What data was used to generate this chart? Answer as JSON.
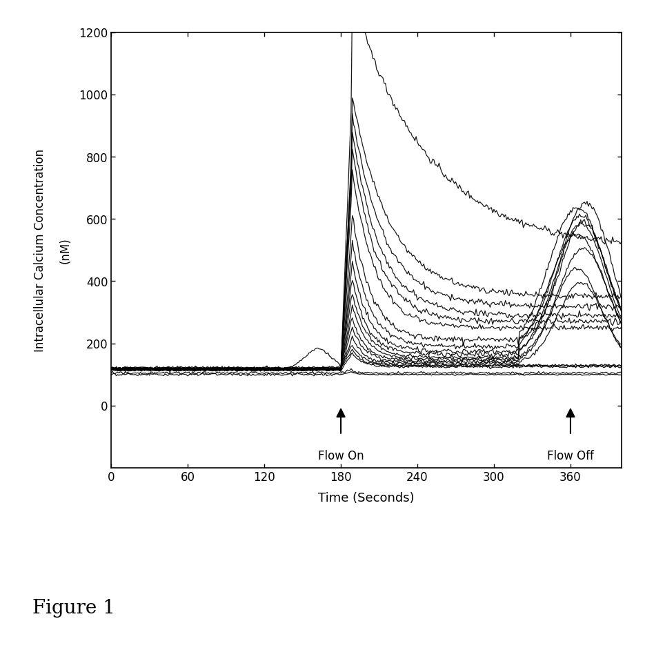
{
  "xlabel": "Time (Seconds)",
  "ylabel_line1": "Intracellular Calcium Concentration",
  "ylabel_line2": "(nM)",
  "xlim": [
    0,
    400
  ],
  "ylim": [
    0,
    1200
  ],
  "xticks": [
    0,
    60,
    120,
    180,
    240,
    300,
    360
  ],
  "yticks": [
    0,
    200,
    400,
    600,
    800,
    1000,
    1200
  ],
  "flow_on_x": 180,
  "flow_off_x": 360,
  "flow_on_label": "Flow On",
  "flow_off_label": "Flow Off",
  "figure_label": "Figure 1",
  "line_color": "#000000",
  "background_color": "#ffffff"
}
